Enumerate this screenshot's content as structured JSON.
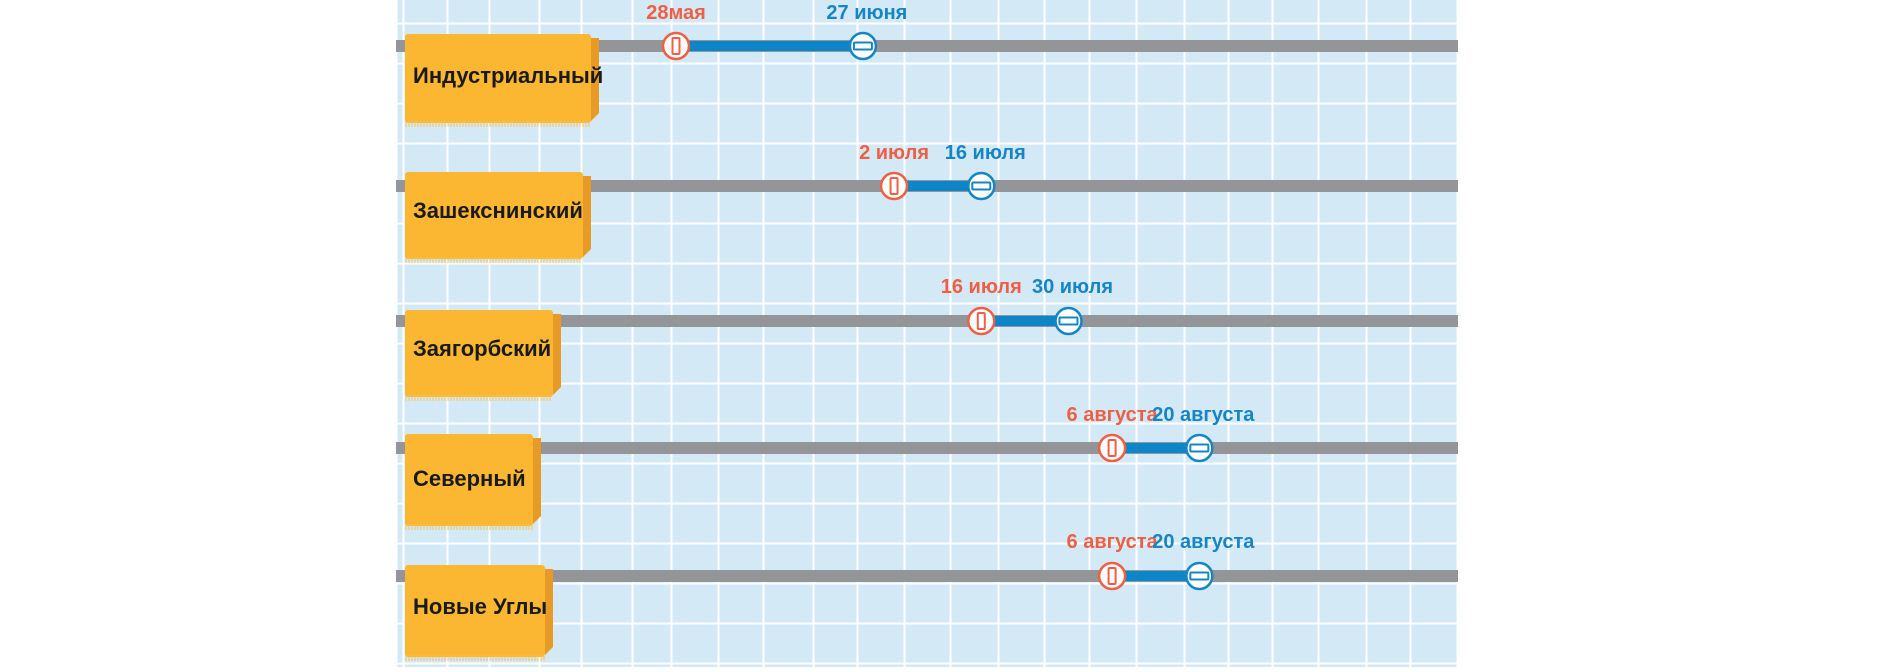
{
  "colors": {
    "background": "#d3e9f5",
    "grid": "#ffffff",
    "track": "#939598",
    "span": "#0d86c9",
    "start": "#ef5f45",
    "end": "#1585c5",
    "label_fill": "#fbb731",
    "label_shade": "#e89a26",
    "label_text": "#1a1a1a"
  },
  "icons": {
    "start_marker": "off-icon",
    "end_marker": "on-icon"
  },
  "districts": [
    {
      "name": "Индустриальный",
      "start_label": "28мая",
      "end_label": "27 июня",
      "start_date": "2000-05-28",
      "end_date": "2000-06-27"
    },
    {
      "name": "Зашекснинский",
      "start_label": "2 июля",
      "end_label": "16 июля",
      "start_date": "2000-07-02",
      "end_date": "2000-07-16"
    },
    {
      "name": "Заягорбский",
      "start_label": "16 июля",
      "end_label": "30 июля",
      "start_date": "2000-07-16",
      "end_date": "2000-07-30"
    },
    {
      "name": "Северный",
      "start_label": "6 августа",
      "end_label": "20 августа",
      "start_date": "2000-08-06",
      "end_date": "2000-08-20"
    },
    {
      "name": "Новые Углы",
      "start_label": "6 августа",
      "end_label": "20 августа",
      "start_date": "2000-08-06",
      "end_date": "2000-08-20"
    }
  ]
}
